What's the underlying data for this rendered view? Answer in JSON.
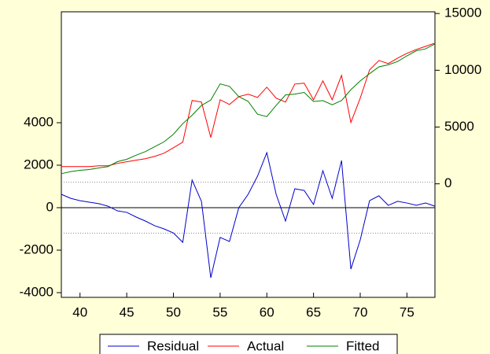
{
  "chart_data": {
    "type": "line",
    "x": [
      38,
      39,
      40,
      41,
      42,
      43,
      44,
      45,
      46,
      47,
      48,
      49,
      50,
      51,
      52,
      53,
      54,
      55,
      56,
      57,
      58,
      59,
      60,
      61,
      62,
      63,
      64,
      65,
      66,
      67,
      68,
      69,
      70,
      71,
      72,
      73,
      74,
      75,
      76,
      77,
      78
    ],
    "series": [
      {
        "name": "Residual",
        "color": "#0000cc",
        "axis": "y",
        "values": [
          630,
          440,
          330,
          260,
          190,
          70,
          -150,
          -220,
          -440,
          -630,
          -850,
          -1000,
          -1190,
          -1630,
          1300,
          300,
          -3300,
          -1400,
          -1590,
          0,
          630,
          1480,
          2590,
          630,
          -630,
          890,
          810,
          150,
          1740,
          440,
          2220,
          -2890,
          -1520,
          330,
          560,
          110,
          300,
          220,
          110,
          220,
          70
        ]
      },
      {
        "name": "Actual",
        "color": "#ff0000",
        "axis": "y2",
        "values": [
          1520,
          1520,
          1520,
          1520,
          1590,
          1590,
          1800,
          1940,
          2080,
          2210,
          2420,
          2700,
          3180,
          3670,
          7340,
          7200,
          4080,
          7400,
          6990,
          7680,
          7890,
          7610,
          8510,
          7540,
          7200,
          8790,
          8860,
          7400,
          9070,
          7400,
          9550,
          5400,
          7540,
          10030,
          10860,
          10590,
          11070,
          11490,
          11830,
          12110,
          12390
        ]
      },
      {
        "name": "Fitted",
        "color": "#008000",
        "axis": "y2",
        "values": [
          890,
          1080,
          1190,
          1260,
          1400,
          1520,
          1950,
          2160,
          2520,
          2840,
          3270,
          3700,
          4370,
          5300,
          6040,
          6900,
          7380,
          8800,
          8580,
          7680,
          7260,
          6130,
          5920,
          6910,
          7830,
          7900,
          8050,
          7250,
          7330,
          6960,
          7330,
          8290,
          9060,
          9700,
          10300,
          10480,
          10770,
          11270,
          11720,
          11890,
          12320
        ]
      }
    ],
    "xlim": [
      38,
      78
    ],
    "xticks": [
      40,
      45,
      50,
      55,
      60,
      65,
      70,
      75
    ],
    "ylim": [
      -4222,
      9222
    ],
    "yticks": [
      -4000,
      -2000,
      0,
      2000,
      4000
    ],
    "y2lim": [
      -10000,
      15150
    ],
    "y2ticks": [
      0,
      5000,
      10000,
      15000
    ],
    "ref_lines": [
      1200,
      -1200
    ]
  }
}
